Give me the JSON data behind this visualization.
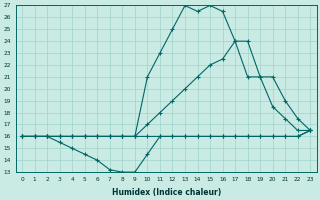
{
  "xlabel": "Humidex (Indice chaleur)",
  "bg_color": "#caeae4",
  "grid_color": "#a0d4cb",
  "line_color": "#006666",
  "xlim_min": -0.5,
  "xlim_max": 23.5,
  "ylim_min": 13,
  "ylim_max": 27,
  "xticks": [
    0,
    1,
    2,
    3,
    4,
    5,
    6,
    7,
    8,
    9,
    10,
    11,
    12,
    13,
    14,
    15,
    16,
    17,
    18,
    19,
    20,
    21,
    22,
    23
  ],
  "yticks": [
    13,
    14,
    15,
    16,
    17,
    18,
    19,
    20,
    21,
    22,
    23,
    24,
    25,
    26,
    27
  ],
  "line_min_x": [
    0,
    1,
    2,
    3,
    4,
    5,
    6,
    7,
    8,
    9,
    10,
    11,
    12,
    13,
    14,
    15,
    16,
    17,
    18,
    19,
    20,
    21,
    22,
    23
  ],
  "line_min_y": [
    16,
    16,
    16,
    15.5,
    15,
    14.5,
    14,
    13.2,
    13,
    13,
    14.5,
    16,
    16,
    16,
    16,
    16,
    16,
    16,
    16,
    16,
    16,
    16,
    16,
    16.5
  ],
  "line_upper_x": [
    0,
    1,
    2,
    3,
    4,
    5,
    6,
    7,
    8,
    9,
    10,
    11,
    12,
    13,
    14,
    15,
    16,
    17,
    18,
    19,
    20,
    21,
    22,
    23
  ],
  "line_upper_y": [
    16,
    16,
    16,
    16,
    16,
    16,
    16,
    16,
    16,
    16,
    21,
    23,
    25,
    27,
    26.5,
    27,
    26.5,
    24,
    24,
    21,
    21,
    19,
    17.5,
    16.5
  ],
  "line_mid_x": [
    0,
    1,
    2,
    3,
    4,
    5,
    6,
    7,
    8,
    9,
    10,
    11,
    12,
    13,
    14,
    15,
    16,
    17,
    18,
    19,
    20,
    21,
    22,
    23
  ],
  "line_mid_y": [
    16,
    16,
    16,
    16,
    16,
    16,
    16,
    16,
    16,
    16,
    17,
    18,
    19,
    20,
    21,
    22,
    22.5,
    24,
    21,
    21,
    18.5,
    17.5,
    16.5,
    16.5
  ],
  "line_flat_x": [
    0,
    1,
    2,
    3,
    4,
    5,
    6,
    7,
    8,
    9,
    10,
    11,
    12,
    13,
    14,
    15,
    16,
    17,
    18,
    19,
    20,
    21,
    22,
    23
  ],
  "line_flat_y": [
    16,
    16,
    16,
    16,
    16,
    16,
    16,
    16,
    16,
    16,
    16,
    16,
    16,
    16,
    16,
    16,
    16,
    16,
    16,
    16,
    16,
    16,
    16,
    16.5
  ]
}
